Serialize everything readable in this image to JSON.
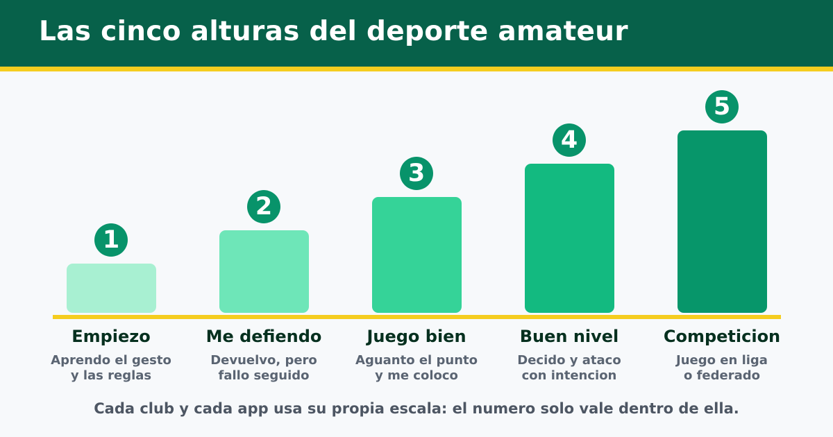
{
  "title": "Las cinco alturas del deporte amateur",
  "levels": [
    {
      "number": "1",
      "name": "Empiezo",
      "desc_line1": "Aprendo el gesto",
      "desc_line2": "y las reglas",
      "color": "#a8f0d2"
    },
    {
      "number": "2",
      "name": "Me defiendo",
      "desc_line1": "Devuelvo, pero",
      "desc_line2": "fallo seguido",
      "color": "#6ee6b8"
    },
    {
      "number": "3",
      "name": "Juego bien",
      "desc_line1": "Aguanto el punto",
      "desc_line2": "y me coloco",
      "color": "#35d398"
    },
    {
      "number": "4",
      "name": "Buen nivel",
      "desc_line1": "Decido y ataco",
      "desc_line2": "con intencion",
      "color": "#13ba80"
    },
    {
      "number": "5",
      "name": "Competicion",
      "desc_line1": "Juego en liga",
      "desc_line2": "o federado",
      "color": "#07966a"
    }
  ],
  "footer": "Cada club y cada app usa su propia escala: el numero solo vale dentro de ella.",
  "colors": {
    "header": "#07614a",
    "accent": "#f5cd1f",
    "badge": "#08936a",
    "background": "#f7f9fb"
  }
}
